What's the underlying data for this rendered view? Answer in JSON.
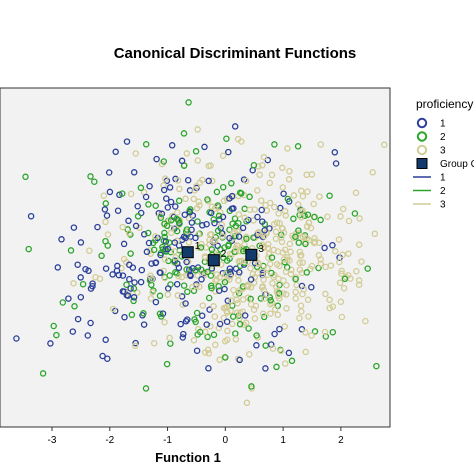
{
  "chart_data": {
    "type": "scatter",
    "title": "Canonical Discriminant Functions",
    "xlabel": "Function 1",
    "ylabel": "",
    "xlim": [
      -3.9,
      2.85
    ],
    "ylim": [
      -3.4,
      3.0
    ],
    "x_ticks": [
      "-3",
      "-2",
      "-1",
      "0",
      "1",
      "2"
    ],
    "grid": false,
    "legend_title": "proficiency",
    "legend_placement": "right",
    "legend_items": [
      {
        "label": "1",
        "kind": "point",
        "series": 0
      },
      {
        "label": "2",
        "kind": "point",
        "series": 1
      },
      {
        "label": "3",
        "kind": "point",
        "series": 2
      },
      {
        "label": "Group Centroid",
        "kind": "centroid"
      },
      {
        "label": "1",
        "kind": "line",
        "series": 0
      },
      {
        "label": "2",
        "kind": "line",
        "series": 1
      },
      {
        "label": "3",
        "kind": "line",
        "series": 2
      }
    ],
    "series": [
      {
        "name": "1",
        "color": "#2a3f9a",
        "center": [
          -0.65,
          -0.1
        ],
        "spread": [
          1.1,
          0.95
        ],
        "count": 210,
        "seed": 11
      },
      {
        "name": "2",
        "color": "#2aa52a",
        "center": [
          -0.2,
          -0.25
        ],
        "spread": [
          1.1,
          0.95
        ],
        "count": 210,
        "seed": 23
      },
      {
        "name": "3",
        "color": "#d2cc96",
        "center": [
          0.45,
          -0.15
        ],
        "spread": [
          1.05,
          0.9
        ],
        "count": 420,
        "seed": 37
      }
    ],
    "centroids": [
      {
        "group": "1",
        "x": -0.65,
        "y": -0.1
      },
      {
        "group": "2",
        "x": -0.2,
        "y": -0.25
      },
      {
        "group": "3",
        "x": 0.45,
        "y": -0.15
      }
    ],
    "centroid_color": "#123a6b",
    "plot_background": "#f2f2f2"
  }
}
